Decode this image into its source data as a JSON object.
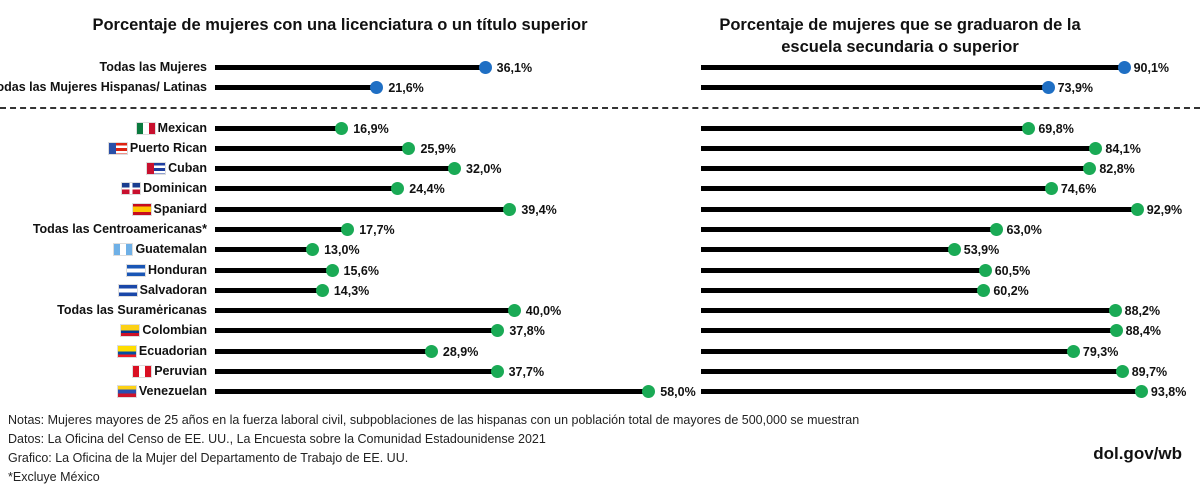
{
  "chart_data": [
    {
      "type": "lollipop",
      "title": "Porcentaje de mujeres con una licenciatura o un título superior",
      "unit": "%",
      "xlim": [
        0,
        58
      ]
    },
    {
      "type": "lollipop",
      "title": "Porcentaje de mujeres que se graduaron de la escuela secundaria o superior",
      "unit": "%",
      "xlim": [
        0,
        93.8
      ]
    }
  ],
  "rows": [
    {
      "label": "Todas las Mujeres",
      "flag": "",
      "left": 36.1,
      "right": 90.1,
      "left_text": "36,1%",
      "right_text": "90,1%",
      "color": "#1f6fc4"
    },
    {
      "label": "Todas las Mujeres Hispanas/ Latinas",
      "flag": "",
      "left": 21.6,
      "right": 73.9,
      "left_text": "21,6%",
      "right_text": "73,9%",
      "color": "#1f6fc4"
    },
    {
      "label": "Mexican",
      "flag": "mexico-flag",
      "left": 16.9,
      "right": 69.8,
      "left_text": "16,9%",
      "right_text": "69,8%",
      "color": "#1aaa55"
    },
    {
      "label": "Puerto Rican",
      "flag": "puerto-rico-flag",
      "left": 25.9,
      "right": 84.1,
      "left_text": "25,9%",
      "right_text": "84,1%",
      "color": "#1aaa55"
    },
    {
      "label": "Cuban",
      "flag": "cuba-flag",
      "left": 32.0,
      "right": 82.8,
      "left_text": "32,0%",
      "right_text": "82,8%",
      "color": "#1aaa55"
    },
    {
      "label": "Dominican",
      "flag": "dominican-republic-flag",
      "left": 24.4,
      "right": 74.6,
      "left_text": "24,4%",
      "right_text": "74,6%",
      "color": "#1aaa55"
    },
    {
      "label": "Spaniard",
      "flag": "spain-flag",
      "left": 39.4,
      "right": 92.9,
      "left_text": "39,4%",
      "right_text": "92,9%",
      "color": "#1aaa55"
    },
    {
      "label": "Todas las Centroamericanas*",
      "flag": "",
      "left": 17.7,
      "right": 63.0,
      "left_text": "17,7%",
      "right_text": "63,0%",
      "color": "#1aaa55"
    },
    {
      "label": "Guatemalan",
      "flag": "guatemala-flag",
      "left": 13.0,
      "right": 53.9,
      "left_text": "13,0%",
      "right_text": "53,9%",
      "color": "#1aaa55"
    },
    {
      "label": "Honduran",
      "flag": "honduras-flag",
      "left": 15.6,
      "right": 60.5,
      "left_text": "15,6%",
      "right_text": "60,5%",
      "color": "#1aaa55"
    },
    {
      "label": "Salvadoran",
      "flag": "el-salvador-flag",
      "left": 14.3,
      "right": 60.2,
      "left_text": "14,3%",
      "right_text": "60,2%",
      "color": "#1aaa55"
    },
    {
      "label": "Todas las Suramėricanas",
      "flag": "",
      "left": 40.0,
      "right": 88.2,
      "left_text": "40,0%",
      "right_text": "88,2%",
      "color": "#1aaa55"
    },
    {
      "label": "Colombian",
      "flag": "colombia-flag",
      "left": 37.8,
      "right": 88.4,
      "left_text": "37,8%",
      "right_text": "88,4%",
      "color": "#1aaa55"
    },
    {
      "label": "Ecuadorian",
      "flag": "ecuador-flag",
      "left": 28.9,
      "right": 79.3,
      "left_text": "28,9%",
      "right_text": "79,3%",
      "color": "#1aaa55"
    },
    {
      "label": "Peruvian",
      "flag": "peru-flag",
      "left": 37.7,
      "right": 89.7,
      "left_text": "37,7%",
      "right_text": "89,7%",
      "color": "#1aaa55"
    },
    {
      "label": "Venezuelan",
      "flag": "venezuela-flag",
      "left": 58.0,
      "right": 93.8,
      "left_text": "58,0%",
      "right_text": "93,8%",
      "color": "#1aaa55"
    }
  ],
  "notes": [
    "Notas: Mujeres mayores de 25 años en la fuerza laboral civil, subpoblaciones de las hispanas con un población total de mayores de 500,000 se muestran",
    "Datos: La Oficina del Censo de EE. UU., La Encuesta sobre la Comunidad Estadounidense 2021",
    "Grafico: La Oficina de la Mujer del Departamento de Trabajo de EE. UU.",
    "*Excluye México"
  ],
  "brand": "dol.gov/wb"
}
